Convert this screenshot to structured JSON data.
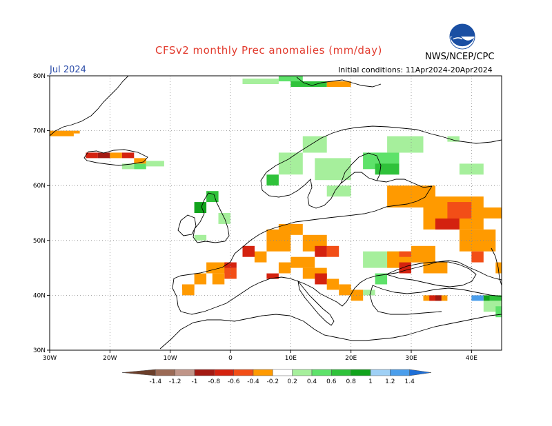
{
  "header": {
    "title": "CFSv2 monthly Prec anomalies (mm/day)",
    "month": "Jul 2024",
    "initial_conditions": "Initial conditions: 11Apr2024-20Apr2024",
    "agency": "NWS/NCEP/CPC",
    "logo_text": "NOAA"
  },
  "axes": {
    "lat_labels": [
      "80N",
      "70N",
      "60N",
      "50N",
      "40N",
      "30N"
    ],
    "lon_labels": [
      "30W",
      "20W",
      "10W",
      "0",
      "10E",
      "20E",
      "30E",
      "40E"
    ]
  },
  "colorbar": {
    "labels": [
      "-1.4",
      "-1.2",
      "-1",
      "-0.8",
      "-0.6",
      "-0.4",
      "-0.2",
      "0.2",
      "0.4",
      "0.6",
      "0.8",
      "1",
      "1.2",
      "1.4"
    ],
    "colors": [
      "#6b3f2b",
      "#9b6a55",
      "#c09588",
      "#a31a12",
      "#d4220f",
      "#f24e17",
      "#ff9a00",
      "#ffffff",
      "#a6ef9c",
      "#5ee26a",
      "#2fc23a",
      "#11a31c",
      "#9fd0f5",
      "#4b9eeb",
      "#1f6fd6"
    ]
  },
  "chart_data": {
    "type": "heatmap",
    "title": "CFSv2 monthly Prec anomalies (mm/day)",
    "period": "Jul 2024",
    "units": "mm/day",
    "lon_range": [
      -30,
      45
    ],
    "lat_range": [
      30,
      80
    ],
    "levels": [
      -1.4,
      -1.2,
      -1,
      -0.8,
      -0.6,
      -0.4,
      -0.2,
      0.2,
      0.4,
      0.6,
      0.8,
      1,
      1.2,
      1.4
    ],
    "grid": true,
    "anomaly_regions": [
      {
        "region": "Iceland west",
        "sign": "negative",
        "min": -0.6
      },
      {
        "region": "Iceland east",
        "sign": "positive",
        "max": 0.4
      },
      {
        "region": "Norway/Sweden",
        "sign": "positive",
        "max": 0.8
      },
      {
        "region": "Finland",
        "sign": "positive",
        "max": 0.8
      },
      {
        "region": "Scotland",
        "sign": "positive",
        "max": 1.0
      },
      {
        "region": "Western Russia / Ukraine",
        "sign": "negative",
        "min": -0.6
      },
      {
        "region": "France / Bay of Biscay",
        "sign": "negative",
        "min": -0.6
      },
      {
        "region": "Central Europe / Alps",
        "sign": "negative",
        "min": -0.6
      },
      {
        "region": "Balkans / Adriatic",
        "sign": "negative",
        "min": -0.6
      },
      {
        "region": "Caucasus",
        "sign": "positive",
        "max": 1.4
      },
      {
        "region": "Turkey north coast",
        "sign": "negative",
        "min": -0.8
      }
    ]
  }
}
